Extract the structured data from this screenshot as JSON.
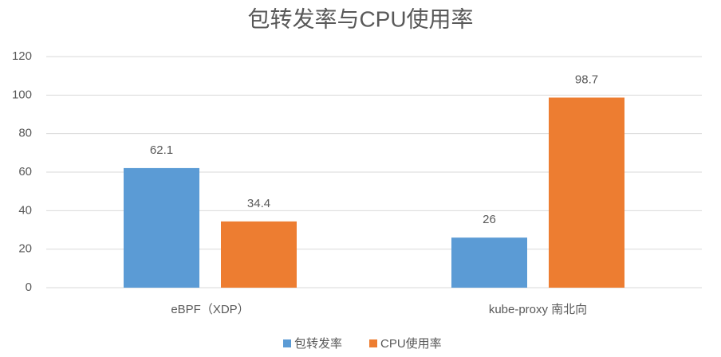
{
  "chart_data": {
    "type": "bar",
    "title": "包转发率与CPU使用率",
    "categories": [
      "eBPF（XDP）",
      "kube-proxy 南北向"
    ],
    "series": [
      {
        "name": "包转发率",
        "color": "#5b9bd5",
        "values": [
          62.1,
          26
        ]
      },
      {
        "name": "CPU使用率",
        "color": "#ed7d31",
        "values": [
          34.4,
          98.7
        ]
      }
    ],
    "ylim": [
      0,
      120
    ],
    "yticks": [
      0,
      20,
      40,
      60,
      80,
      100,
      120
    ],
    "grid": true,
    "legend": "bottom"
  }
}
